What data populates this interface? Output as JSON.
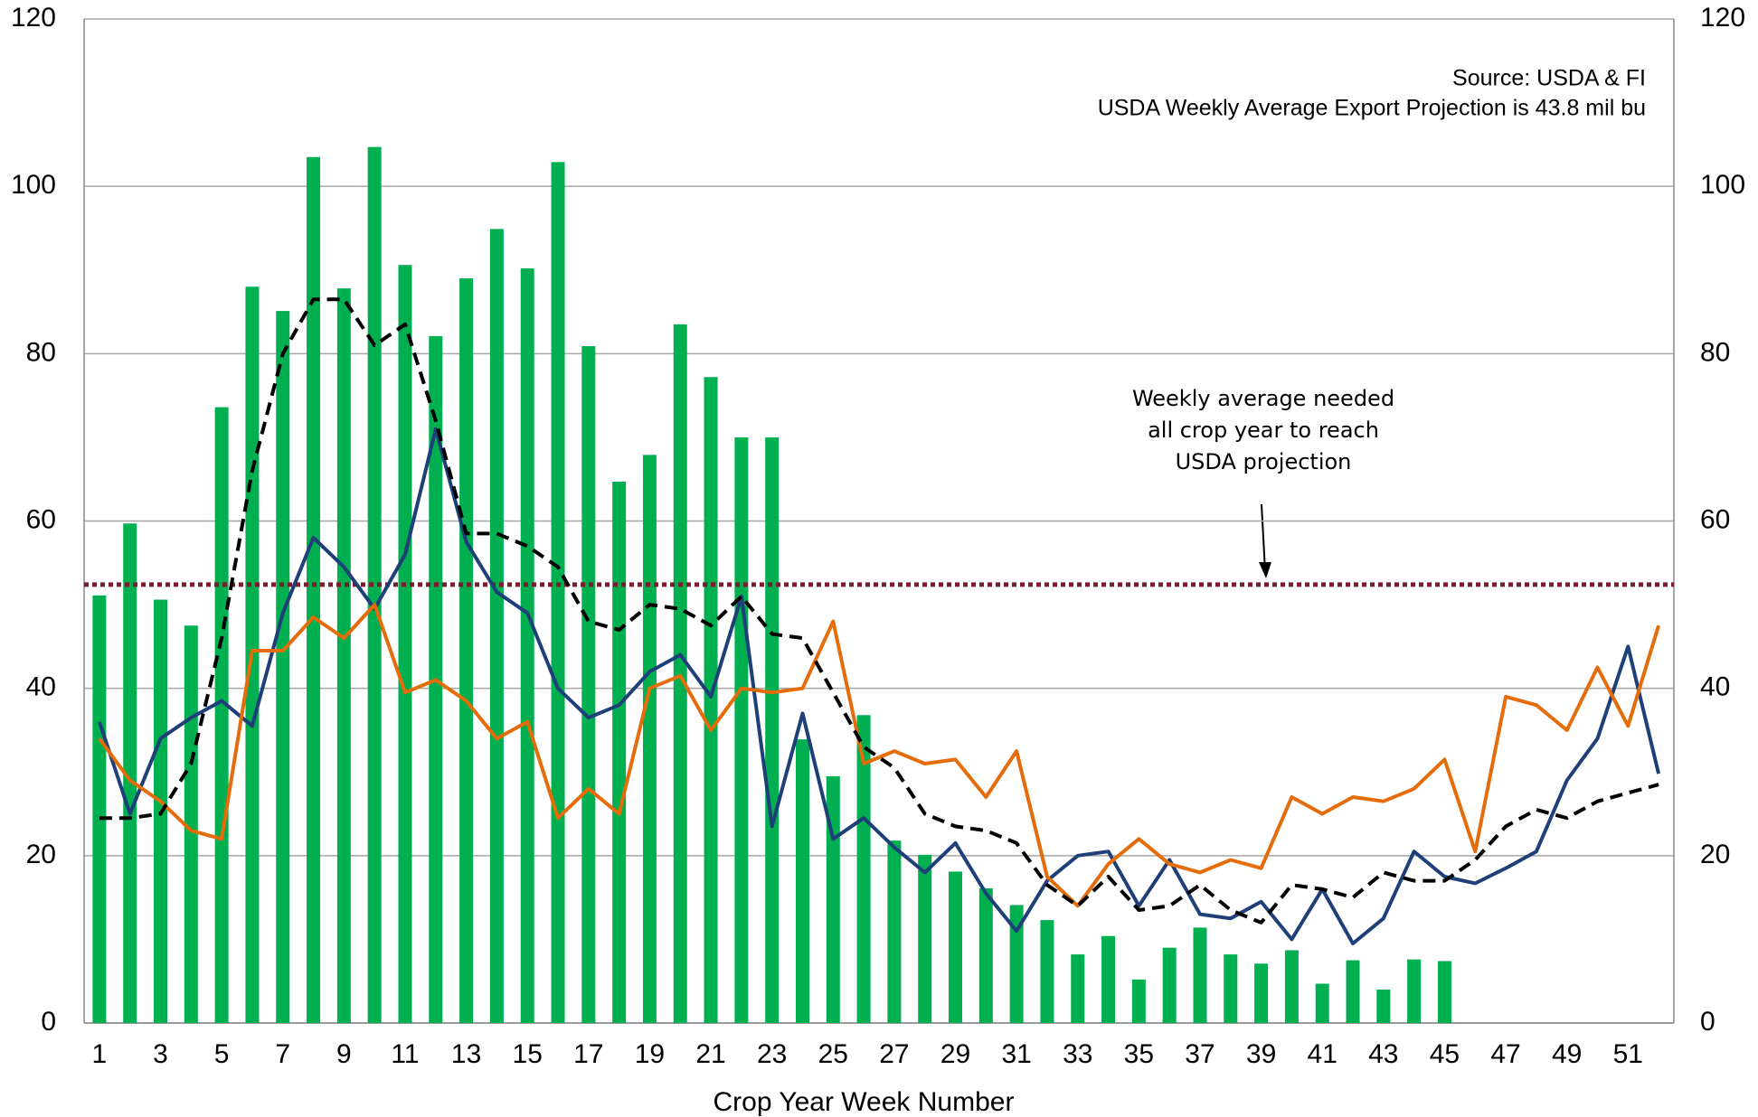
{
  "chart_data": {
    "type": "bar_line",
    "x_label": "Crop Year Week Number",
    "annotations": [
      "Source: USDA & FI",
      "USDA Weekly Average Export Projection is 43.8 mil bu"
    ],
    "callout": [
      "Weekly average needed",
      "all crop year to reach",
      "USDA projection"
    ],
    "categories": [
      1,
      null,
      3,
      null,
      5,
      null,
      7,
      null,
      9,
      null,
      11,
      null,
      13,
      null,
      15,
      null,
      17,
      null,
      19,
      null,
      21,
      null,
      23,
      null,
      25,
      null,
      27,
      null,
      29,
      null,
      31,
      null,
      33,
      null,
      35,
      null,
      37,
      null,
      39,
      null,
      41,
      null,
      43,
      null,
      45,
      null,
      47,
      null,
      49,
      null,
      51,
      null
    ],
    "bars": {
      "color": "#00b050",
      "values": [
        51.1,
        59.7,
        50.6,
        47.5,
        73.6,
        88.0,
        85.1,
        103.5,
        87.8,
        104.7,
        90.6,
        82.1,
        89.0,
        94.9,
        90.2,
        102.9,
        80.9,
        64.7,
        67.9,
        83.5,
        77.2,
        70.0,
        70.0,
        33.9,
        29.5,
        36.8,
        21.8,
        20.1,
        18.1,
        16.1,
        14.1,
        12.3,
        8.2,
        10.4,
        5.2,
        9.0,
        11.4,
        8.2,
        7.1,
        8.7,
        4.7,
        7.5,
        4.0,
        7.6,
        7.4,
        null,
        null,
        null,
        null,
        null,
        null,
        null
      ]
    },
    "series": [
      {
        "color": "#1f3f78",
        "dash": "solid",
        "values": [
          36,
          25,
          34,
          36.5,
          38.5,
          35.5,
          49,
          58,
          54.5,
          49.5,
          56,
          71,
          57.5,
          51.5,
          49,
          40,
          36.5,
          38,
          42,
          44,
          39,
          51,
          23.5,
          37,
          22,
          24.5,
          21,
          18,
          21.5,
          15.5,
          11,
          17,
          20,
          20.5,
          14,
          19.5,
          13,
          12.5,
          14.5,
          10,
          16,
          9.5,
          12.5,
          20.5,
          17.5,
          16.7,
          18.5,
          20.5,
          29,
          34,
          45,
          29.8
        ]
      },
      {
        "color": "#e46c0a",
        "dash": "solid",
        "values": [
          34,
          29,
          26.5,
          23,
          22,
          44.5,
          44.5,
          48.5,
          46,
          50,
          39.5,
          41,
          38.5,
          34,
          36,
          24.5,
          28,
          25,
          40,
          41.5,
          35,
          40,
          39.5,
          40,
          48,
          31,
          32.5,
          31,
          31.5,
          27,
          32.5,
          17.5,
          14,
          19,
          22,
          19,
          18,
          19.5,
          18.5,
          27,
          25,
          27,
          26.5,
          28,
          31.5,
          20.5,
          39,
          38,
          35,
          42.5,
          35.5,
          47.5
        ]
      },
      {
        "color": "#000000",
        "dash": "dashed",
        "values": [
          24.5,
          24.5,
          25,
          31,
          46,
          66,
          80,
          86.5,
          86.5,
          81,
          83.5,
          72,
          58.5,
          58.5,
          57,
          54.5,
          48,
          47,
          50,
          49.5,
          47.5,
          51,
          46.5,
          46,
          39.5,
          33,
          30.5,
          25,
          23.5,
          23,
          21.5,
          16.5,
          14,
          17.5,
          13.5,
          14,
          16.5,
          13.5,
          12,
          16.5,
          16,
          15,
          18,
          17,
          17,
          19.5,
          23.5,
          25.5,
          24.5,
          26.5,
          27.5,
          28.5
        ]
      }
    ],
    "reference_line": {
      "value": 52.4,
      "color": "#7b1c2e"
    },
    "ylim": [
      0,
      120
    ],
    "yticks": [
      0,
      20,
      40,
      60,
      80,
      100,
      120
    ],
    "y2lim": [
      0,
      120
    ],
    "y2ticks": [
      0,
      20,
      40,
      60,
      80,
      100,
      120
    ],
    "grid": true
  }
}
